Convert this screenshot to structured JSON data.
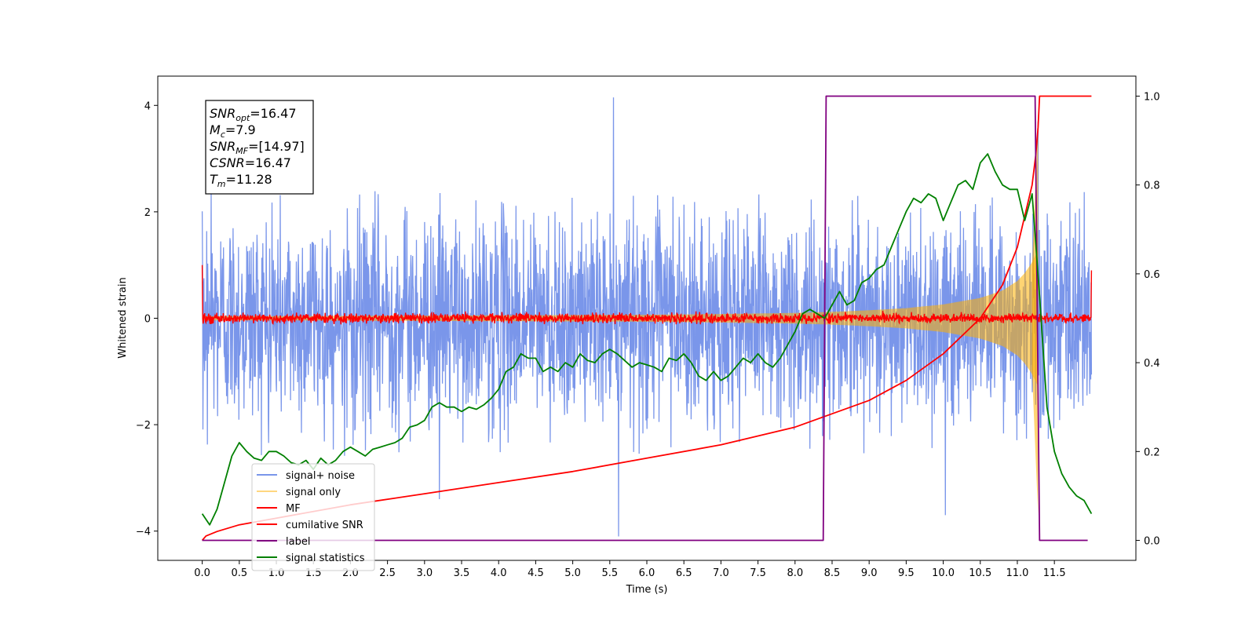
{
  "chart_data": {
    "type": "line",
    "xlabel": "Time (s)",
    "ylabel": "Whitened strain",
    "xlim": [
      -0.6,
      12.6
    ],
    "ylim": [
      -4.55,
      4.55
    ],
    "y2lim": [
      -0.045,
      1.045
    ],
    "xticks": [
      0.0,
      0.5,
      1.0,
      1.5,
      2.0,
      2.5,
      3.0,
      3.5,
      4.0,
      4.5,
      5.0,
      5.5,
      6.0,
      6.5,
      7.0,
      7.5,
      8.0,
      8.5,
      9.0,
      9.5,
      10.0,
      10.5,
      11.0,
      11.5
    ],
    "xtick_labels": [
      "0.0",
      "0.5",
      "1.0",
      "1.5",
      "2.0",
      "2.5",
      "3.0",
      "3.5",
      "4.0",
      "4.5",
      "5.0",
      "5.5",
      "6.0",
      "6.5",
      "7.0",
      "7.5",
      "8.0",
      "8.5",
      "9.0",
      "9.5",
      "10.0",
      "10.5",
      "11.0",
      "11.5"
    ],
    "yticks": [
      -4,
      -2,
      0,
      2,
      4
    ],
    "ytick_labels": [
      "−4",
      "−2",
      "0",
      "2",
      "4"
    ],
    "y2ticks": [
      0.0,
      0.2,
      0.4,
      0.6,
      0.8,
      1.0
    ],
    "y2tick_labels": [
      "0.0",
      "0.2",
      "0.4",
      "0.6",
      "0.8",
      "1.0"
    ],
    "grid": false,
    "legend_position": "lower-left",
    "annotation": [
      {
        "base": "SNR",
        "sub": "opt",
        "value": "=16.47"
      },
      {
        "base": "M",
        "sub": "c",
        "value": "=7.9"
      },
      {
        "base": "SNR",
        "sub": "MF",
        "value": "=[14.97]"
      },
      {
        "base": "CSNR",
        "sub": "",
        "value": "=16.47"
      },
      {
        "base": "T",
        "sub": "m",
        "value": "=11.28"
      }
    ],
    "series": [
      {
        "name": "signal+ noise",
        "axis": "left",
        "color": "#4169e1",
        "alpha": 0.7,
        "kind": "noise",
        "x_range": [
          0.0,
          12.0
        ],
        "band_low": -2.6,
        "band_high": 2.4,
        "extremes": [
          [
            5.55,
            4.15
          ],
          [
            5.62,
            -4.1
          ],
          [
            11.28,
            3.7
          ],
          [
            10.03,
            -3.7
          ],
          [
            0.12,
            2.4
          ],
          [
            3.2,
            -3.4
          ]
        ]
      },
      {
        "name": "signal only",
        "axis": "left",
        "color": "#ffb000",
        "alpha": 0.5,
        "kind": "chirp",
        "x": [
          0.0,
          1.0,
          2.0,
          3.0,
          4.0,
          5.0,
          6.0,
          7.0,
          7.5,
          8.0,
          8.5,
          9.0,
          9.5,
          10.0,
          10.5,
          10.8,
          11.0,
          11.1,
          11.2,
          11.25,
          11.28
        ],
        "amplitude": [
          0.04,
          0.04,
          0.045,
          0.05,
          0.055,
          0.06,
          0.065,
          0.08,
          0.09,
          0.1,
          0.12,
          0.15,
          0.19,
          0.26,
          0.38,
          0.52,
          0.7,
          0.85,
          1.05,
          1.2,
          1.28
        ]
      },
      {
        "name": "MF",
        "axis": "left",
        "color": "#ff0000",
        "kind": "noise",
        "x_range": [
          0.0,
          12.0
        ],
        "band_low": -0.12,
        "band_high": 0.14,
        "extremes": [
          [
            0.0,
            1.0
          ],
          [
            12.0,
            0.9
          ],
          [
            0.01,
            -0.1
          ]
        ]
      },
      {
        "name": "cumilative SNR",
        "axis": "right",
        "color": "#ff0000",
        "x": [
          0.0,
          0.05,
          0.2,
          0.5,
          1.0,
          2.0,
          3.0,
          4.0,
          5.0,
          6.0,
          7.0,
          8.0,
          8.5,
          9.0,
          9.5,
          10.0,
          10.5,
          10.8,
          11.0,
          11.1,
          11.2,
          11.25,
          11.28,
          11.3,
          12.0
        ],
        "y": [
          0.0,
          0.01,
          0.02,
          0.035,
          0.05,
          0.08,
          0.105,
          0.13,
          0.155,
          0.185,
          0.215,
          0.255,
          0.285,
          0.315,
          0.36,
          0.42,
          0.5,
          0.575,
          0.66,
          0.73,
          0.8,
          0.87,
          0.93,
          1.0,
          1.0
        ]
      },
      {
        "name": "label",
        "axis": "right",
        "color": "#800080",
        "x": [
          0.0,
          8.38,
          8.42,
          11.24,
          11.3,
          11.95
        ],
        "y": [
          0.0,
          0.0,
          1.0,
          1.0,
          0.0,
          0.0
        ]
      },
      {
        "name": "signal statistics",
        "axis": "right",
        "color": "#008000",
        "x": [
          0.0,
          0.1,
          0.2,
          0.3,
          0.4,
          0.5,
          0.6,
          0.7,
          0.8,
          0.9,
          1.0,
          1.1,
          1.2,
          1.3,
          1.4,
          1.5,
          1.6,
          1.7,
          1.8,
          1.9,
          2.0,
          2.1,
          2.2,
          2.3,
          2.4,
          2.5,
          2.6,
          2.7,
          2.8,
          2.9,
          3.0,
          3.1,
          3.2,
          3.3,
          3.4,
          3.5,
          3.6,
          3.7,
          3.8,
          3.9,
          4.0,
          4.1,
          4.2,
          4.3,
          4.4,
          4.5,
          4.6,
          4.7,
          4.8,
          4.9,
          5.0,
          5.1,
          5.2,
          5.3,
          5.4,
          5.5,
          5.6,
          5.7,
          5.8,
          5.9,
          6.0,
          6.1,
          6.2,
          6.3,
          6.4,
          6.5,
          6.6,
          6.7,
          6.8,
          6.9,
          7.0,
          7.1,
          7.2,
          7.3,
          7.4,
          7.5,
          7.6,
          7.7,
          7.8,
          7.9,
          8.0,
          8.1,
          8.2,
          8.3,
          8.4,
          8.5,
          8.6,
          8.7,
          8.8,
          8.9,
          9.0,
          9.1,
          9.2,
          9.3,
          9.4,
          9.5,
          9.6,
          9.7,
          9.8,
          9.9,
          10.0,
          10.1,
          10.2,
          10.3,
          10.4,
          10.5,
          10.6,
          10.7,
          10.8,
          10.9,
          11.0,
          11.1,
          11.2,
          11.3,
          11.4,
          11.5,
          11.6,
          11.7,
          11.8,
          11.9,
          12.0
        ],
        "y": [
          0.06,
          0.035,
          0.07,
          0.13,
          0.19,
          0.22,
          0.2,
          0.185,
          0.18,
          0.2,
          0.2,
          0.19,
          0.175,
          0.17,
          0.18,
          0.16,
          0.185,
          0.17,
          0.18,
          0.2,
          0.21,
          0.2,
          0.19,
          0.205,
          0.21,
          0.215,
          0.22,
          0.23,
          0.255,
          0.26,
          0.27,
          0.3,
          0.31,
          0.3,
          0.3,
          0.29,
          0.3,
          0.295,
          0.305,
          0.32,
          0.34,
          0.38,
          0.39,
          0.42,
          0.41,
          0.41,
          0.38,
          0.39,
          0.38,
          0.4,
          0.39,
          0.42,
          0.405,
          0.4,
          0.42,
          0.43,
          0.42,
          0.405,
          0.39,
          0.4,
          0.395,
          0.39,
          0.38,
          0.41,
          0.405,
          0.42,
          0.4,
          0.37,
          0.36,
          0.38,
          0.36,
          0.37,
          0.39,
          0.41,
          0.4,
          0.42,
          0.4,
          0.39,
          0.41,
          0.44,
          0.47,
          0.51,
          0.52,
          0.51,
          0.5,
          0.53,
          0.56,
          0.53,
          0.54,
          0.58,
          0.59,
          0.61,
          0.62,
          0.66,
          0.7,
          0.74,
          0.77,
          0.76,
          0.78,
          0.77,
          0.72,
          0.76,
          0.8,
          0.81,
          0.79,
          0.85,
          0.87,
          0.83,
          0.8,
          0.79,
          0.79,
          0.72,
          0.78,
          0.55,
          0.3,
          0.2,
          0.15,
          0.12,
          0.1,
          0.09,
          0.06
        ]
      }
    ]
  }
}
